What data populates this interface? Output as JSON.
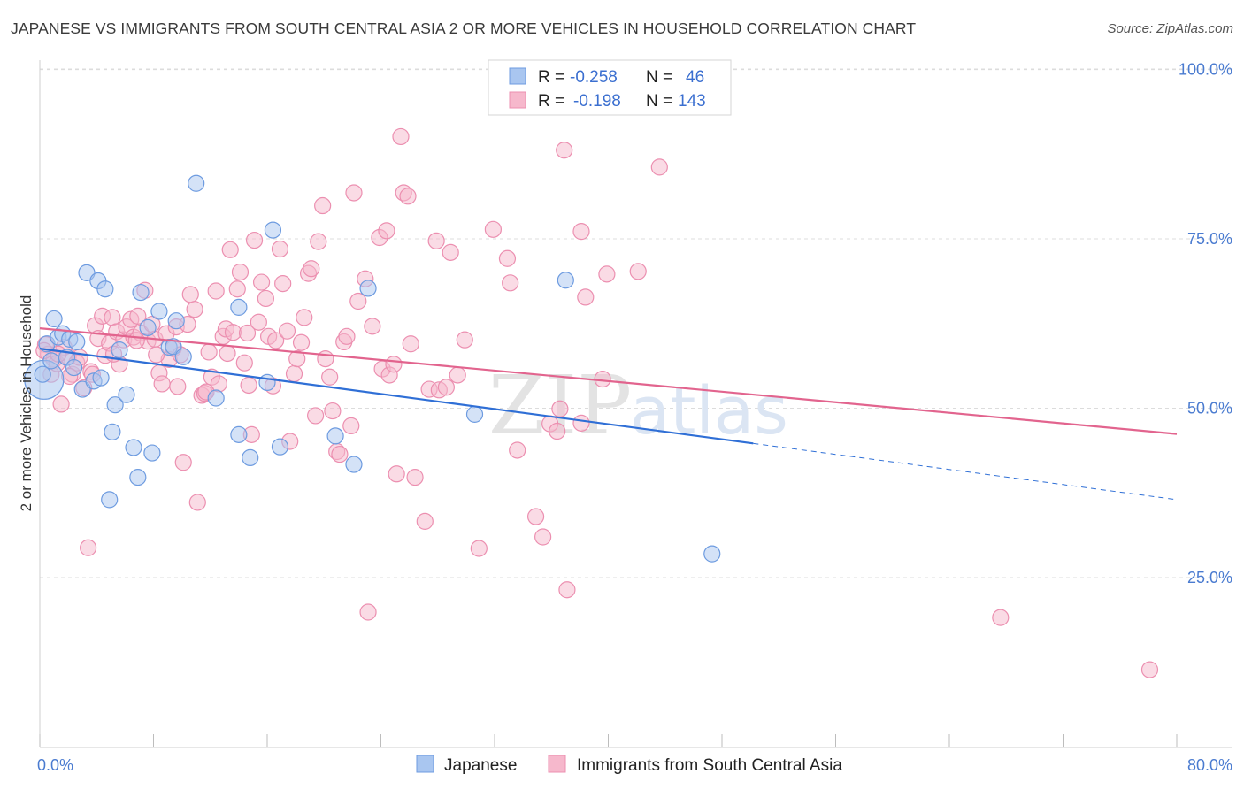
{
  "title": "JAPANESE VS IMMIGRANTS FROM SOUTH CENTRAL ASIA 2 OR MORE VEHICLES IN HOUSEHOLD CORRELATION CHART",
  "source": "Source: ZipAtlas.com",
  "watermark": {
    "zip": "ZIP",
    "atlas": "atlas"
  },
  "colors": {
    "blue_fill": "#a9c6f0",
    "blue_stroke": "#6d9be0",
    "blue_line": "#2f6fd6",
    "pink_fill": "#f6b8cc",
    "pink_stroke": "#ec8fb0",
    "pink_line": "#e2648e",
    "grid": "#dcdcdc",
    "tick_text": "#4a7bd0"
  },
  "legend": {
    "rows": [
      {
        "r_label": "R =",
        "r_value": "-0.258",
        "n_label": "N =",
        "n_value": "46"
      },
      {
        "r_label": "R =",
        "r_value": "-0.198",
        "n_label": "N =",
        "n_value": "143"
      }
    ]
  },
  "chart_data": {
    "type": "scatter",
    "title": "JAPANESE VS IMMIGRANTS FROM SOUTH CENTRAL ASIA 2 OR MORE VEHICLES IN HOUSEHOLD CORRELATION CHART",
    "xlabel": "",
    "ylabel": "2 or more Vehicles in Household",
    "xlim": [
      0,
      80
    ],
    "ylim": [
      0,
      105
    ],
    "x_ticks": [
      "0.0%",
      "80.0%"
    ],
    "y_ticks": [
      {
        "value": 25,
        "label": "25.0%"
      },
      {
        "value": 50,
        "label": "50.0%"
      },
      {
        "value": 75,
        "label": "75.0%"
      },
      {
        "value": 100,
        "label": "100.0%"
      }
    ],
    "grid": true,
    "legend_position": "bottom",
    "series": [
      {
        "name": "Japanese",
        "r": -0.258,
        "n": 46,
        "trend": {
          "x0": 0,
          "y0": 58.8,
          "x1": 50.2,
          "y1": 44.8,
          "dash_to_x": 80,
          "dash_to_y": 36.5
        },
        "points": [
          [
            0.3,
            54.2
          ],
          [
            0.5,
            59.5
          ],
          [
            0.8,
            57.0
          ],
          [
            1.0,
            63.2
          ],
          [
            1.3,
            60.5
          ],
          [
            1.6,
            61.0
          ],
          [
            1.9,
            57.5
          ],
          [
            2.1,
            60.2
          ],
          [
            2.6,
            59.8
          ],
          [
            3.0,
            52.8
          ],
          [
            3.3,
            70.0
          ],
          [
            3.8,
            54.0
          ],
          [
            4.1,
            68.8
          ],
          [
            4.3,
            54.5
          ],
          [
            4.6,
            67.6
          ],
          [
            4.9,
            36.5
          ],
          [
            5.1,
            46.5
          ],
          [
            5.3,
            50.5
          ],
          [
            5.6,
            58.6
          ],
          [
            6.1,
            52.0
          ],
          [
            6.6,
            44.2
          ],
          [
            6.9,
            39.8
          ],
          [
            7.1,
            67.1
          ],
          [
            7.6,
            61.9
          ],
          [
            7.9,
            43.4
          ],
          [
            8.4,
            64.3
          ],
          [
            9.1,
            59.0
          ],
          [
            9.4,
            59.1
          ],
          [
            9.6,
            62.9
          ],
          [
            10.1,
            57.6
          ],
          [
            11.0,
            83.2
          ],
          [
            12.4,
            51.5
          ],
          [
            14.0,
            64.9
          ],
          [
            14.0,
            46.1
          ],
          [
            14.8,
            42.7
          ],
          [
            16.0,
            53.8
          ],
          [
            16.4,
            76.3
          ],
          [
            16.9,
            44.3
          ],
          [
            20.8,
            45.9
          ],
          [
            22.1,
            41.7
          ],
          [
            23.1,
            67.7
          ],
          [
            30.6,
            49.1
          ],
          [
            37.0,
            68.9
          ],
          [
            47.3,
            28.5
          ],
          [
            0.2,
            55.0
          ],
          [
            2.4,
            56.0
          ]
        ]
      },
      {
        "name": "Immigrants from South Central Asia",
        "r": -0.198,
        "n": 143,
        "trend": {
          "x0": 0,
          "y0": 61.8,
          "x1": 80,
          "y1": 46.2
        },
        "points": [
          [
            0.4,
            59.4
          ],
          [
            0.6,
            58.0
          ],
          [
            0.8,
            55.0
          ],
          [
            1.0,
            57.2
          ],
          [
            1.2,
            56.6
          ],
          [
            1.5,
            50.6
          ],
          [
            1.7,
            59.0
          ],
          [
            2.0,
            57.6
          ],
          [
            2.3,
            55.0
          ],
          [
            2.6,
            56.7
          ],
          [
            2.8,
            57.5
          ],
          [
            3.1,
            53.0
          ],
          [
            3.4,
            29.4
          ],
          [
            3.6,
            55.4
          ],
          [
            3.9,
            62.2
          ],
          [
            4.1,
            60.3
          ],
          [
            4.4,
            63.6
          ],
          [
            4.6,
            57.8
          ],
          [
            4.9,
            59.6
          ],
          [
            5.1,
            63.4
          ],
          [
            5.4,
            61.3
          ],
          [
            5.6,
            56.5
          ],
          [
            5.9,
            60.1
          ],
          [
            6.1,
            62.0
          ],
          [
            6.4,
            63.1
          ],
          [
            6.6,
            60.5
          ],
          [
            6.9,
            63.6
          ],
          [
            7.1,
            61.1
          ],
          [
            7.4,
            67.4
          ],
          [
            7.6,
            59.9
          ],
          [
            7.9,
            62.4
          ],
          [
            8.1,
            60.2
          ],
          [
            8.4,
            55.2
          ],
          [
            8.6,
            53.6
          ],
          [
            8.9,
            61.0
          ],
          [
            9.1,
            57.2
          ],
          [
            9.4,
            58.8
          ],
          [
            9.6,
            62.0
          ],
          [
            9.9,
            57.9
          ],
          [
            10.1,
            42.0
          ],
          [
            10.4,
            62.4
          ],
          [
            10.6,
            66.8
          ],
          [
            10.9,
            64.6
          ],
          [
            11.1,
            36.1
          ],
          [
            11.4,
            51.9
          ],
          [
            11.6,
            52.2
          ],
          [
            11.9,
            58.3
          ],
          [
            12.1,
            54.6
          ],
          [
            12.4,
            67.3
          ],
          [
            12.6,
            53.6
          ],
          [
            12.9,
            60.6
          ],
          [
            13.1,
            61.7
          ],
          [
            13.4,
            73.4
          ],
          [
            13.6,
            61.2
          ],
          [
            13.9,
            67.6
          ],
          [
            14.1,
            70.1
          ],
          [
            14.4,
            56.7
          ],
          [
            14.6,
            61.1
          ],
          [
            14.9,
            46.1
          ],
          [
            15.1,
            74.8
          ],
          [
            15.4,
            62.7
          ],
          [
            15.6,
            68.6
          ],
          [
            15.9,
            66.2
          ],
          [
            16.1,
            60.6
          ],
          [
            16.4,
            53.3
          ],
          [
            16.6,
            60.0
          ],
          [
            16.9,
            73.5
          ],
          [
            17.1,
            68.4
          ],
          [
            17.4,
            61.4
          ],
          [
            17.6,
            45.1
          ],
          [
            17.9,
            55.1
          ],
          [
            18.1,
            57.3
          ],
          [
            18.4,
            59.7
          ],
          [
            18.6,
            63.4
          ],
          [
            18.9,
            69.9
          ],
          [
            19.1,
            70.6
          ],
          [
            19.4,
            48.9
          ],
          [
            19.6,
            74.6
          ],
          [
            19.9,
            79.9
          ],
          [
            20.1,
            57.3
          ],
          [
            20.4,
            54.6
          ],
          [
            20.6,
            49.6
          ],
          [
            20.9,
            43.6
          ],
          [
            21.1,
            43.2
          ],
          [
            21.4,
            59.8
          ],
          [
            21.6,
            60.6
          ],
          [
            21.9,
            47.4
          ],
          [
            22.1,
            81.8
          ],
          [
            22.4,
            65.8
          ],
          [
            22.9,
            69.1
          ],
          [
            23.4,
            62.1
          ],
          [
            23.9,
            75.2
          ],
          [
            23.1,
            19.9
          ],
          [
            24.1,
            55.8
          ],
          [
            24.4,
            76.2
          ],
          [
            24.6,
            54.9
          ],
          [
            24.9,
            56.5
          ],
          [
            25.1,
            40.3
          ],
          [
            25.4,
            90.1
          ],
          [
            25.6,
            81.8
          ],
          [
            25.9,
            81.3
          ],
          [
            26.1,
            59.5
          ],
          [
            26.4,
            39.8
          ],
          [
            27.1,
            33.3
          ],
          [
            27.4,
            52.8
          ],
          [
            27.9,
            74.7
          ],
          [
            28.1,
            52.7
          ],
          [
            28.6,
            53.1
          ],
          [
            28.9,
            73.0
          ],
          [
            29.4,
            54.9
          ],
          [
            29.9,
            60.1
          ],
          [
            30.9,
            29.3
          ],
          [
            31.9,
            76.4
          ],
          [
            32.9,
            72.1
          ],
          [
            33.1,
            68.5
          ],
          [
            33.6,
            43.8
          ],
          [
            34.9,
            34.0
          ],
          [
            35.4,
            31.0
          ],
          [
            35.9,
            47.7
          ],
          [
            36.4,
            46.6
          ],
          [
            36.6,
            49.9
          ],
          [
            36.9,
            88.1
          ],
          [
            37.1,
            23.2
          ],
          [
            38.1,
            76.1
          ],
          [
            38.4,
            66.4
          ],
          [
            39.6,
            54.3
          ],
          [
            38.1,
            47.8
          ],
          [
            39.9,
            69.8
          ],
          [
            42.1,
            70.2
          ],
          [
            43.6,
            85.6
          ],
          [
            67.6,
            19.1
          ],
          [
            78.1,
            11.4
          ],
          [
            0.3,
            58.5
          ],
          [
            1.3,
            58.0
          ],
          [
            2.1,
            54.7
          ],
          [
            3.7,
            55.0
          ],
          [
            5.2,
            58.0
          ],
          [
            6.8,
            60.0
          ],
          [
            8.2,
            57.9
          ],
          [
            9.7,
            53.2
          ],
          [
            11.7,
            52.4
          ],
          [
            13.2,
            58.1
          ],
          [
            14.7,
            53.4
          ]
        ]
      }
    ]
  },
  "bottom_legend": [
    {
      "label": "Japanese"
    },
    {
      "label": "Immigrants from South Central Asia"
    }
  ]
}
